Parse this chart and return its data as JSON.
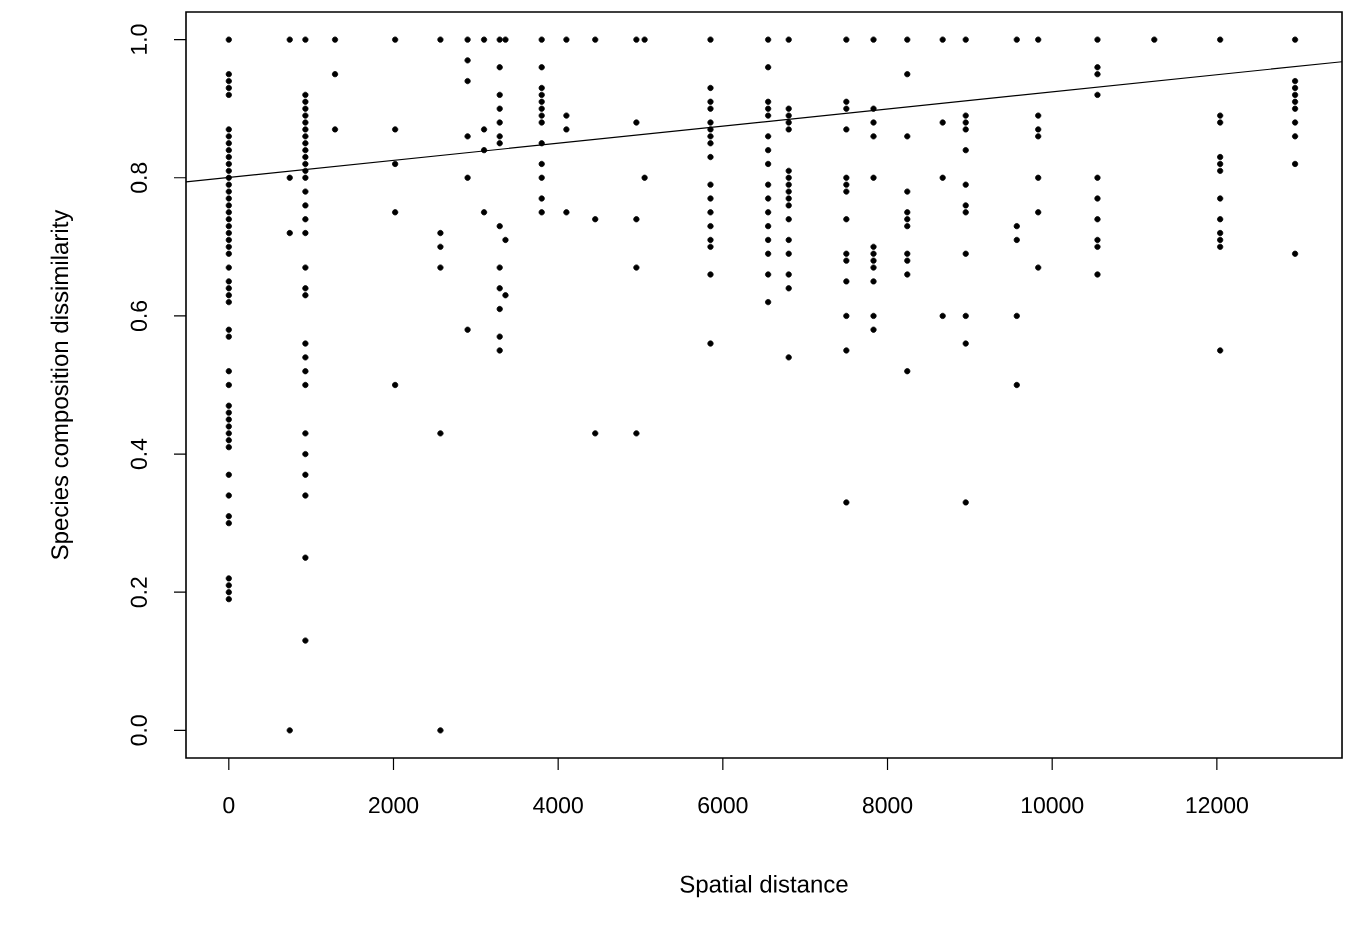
{
  "chart_data": {
    "type": "scatter",
    "xlabel": "Spatial distance",
    "ylabel": "Species composition dissimilarity",
    "xlim": [
      -520,
      13520
    ],
    "ylim": [
      -0.04,
      1.04
    ],
    "xticks": [
      0,
      2000,
      4000,
      6000,
      8000,
      10000,
      12000
    ],
    "yticks": [
      {
        "value": 0,
        "label": "0.0"
      },
      {
        "value": 0.2,
        "label": "0.2"
      },
      {
        "value": 0.4,
        "label": "0.4"
      },
      {
        "value": 0.6,
        "label": "0.6"
      },
      {
        "value": 0.8,
        "label": "0.8"
      },
      {
        "value": 1,
        "label": "1.0"
      }
    ],
    "marker": "circle",
    "grid": false,
    "series": [
      {
        "color": "#000000",
        "x": [
          0,
          0,
          0,
          0,
          0,
          0,
          0,
          0,
          0,
          0,
          0,
          0,
          0,
          0,
          0,
          0,
          0,
          0,
          0,
          0,
          0,
          0,
          0,
          0
        ],
        "values": [
          1.0,
          0.95,
          0.94,
          0.93,
          0.92,
          0.87,
          0.86,
          0.85,
          0.84,
          0.83,
          0.82,
          0.81,
          0.8,
          0.79,
          0.78,
          0.77,
          0.76,
          0.75,
          0.74,
          0.73,
          0.72,
          0.71,
          0.7,
          0.69
        ]
      },
      {
        "color": "#000000",
        "x": [
          0,
          0,
          0,
          0,
          0,
          0,
          0,
          0,
          0,
          0,
          0,
          0,
          0,
          0,
          0,
          0,
          0,
          0,
          0,
          0,
          0,
          0,
          0,
          0
        ],
        "values": [
          0.67,
          0.65,
          0.64,
          0.63,
          0.62,
          0.58,
          0.57,
          0.52,
          0.5,
          0.47,
          0.46,
          0.45,
          0.44,
          0.43,
          0.42,
          0.41,
          0.37,
          0.34,
          0.31,
          0.3,
          0.22,
          0.21,
          0.2,
          0.19
        ]
      },
      {
        "color": "#000000",
        "x": [
          740,
          740,
          740,
          740
        ],
        "values": [
          1.0,
          0.8,
          0.72,
          0.0
        ]
      },
      {
        "color": "#000000",
        "x": [
          930,
          930,
          930,
          930,
          930,
          930,
          930,
          930,
          930,
          930,
          930,
          930,
          930,
          930,
          930,
          930
        ],
        "values": [
          1.0,
          0.92,
          0.91,
          0.9,
          0.89,
          0.88,
          0.87,
          0.86,
          0.85,
          0.84,
          0.83,
          0.82,
          0.81,
          0.8,
          0.78,
          0.76
        ]
      },
      {
        "color": "#000000",
        "x": [
          930,
          930,
          930,
          930,
          930,
          930,
          930,
          930,
          930,
          930,
          930,
          930,
          930,
          930,
          930
        ],
        "values": [
          0.74,
          0.72,
          0.67,
          0.64,
          0.63,
          0.56,
          0.54,
          0.52,
          0.5,
          0.43,
          0.4,
          0.37,
          0.34,
          0.25,
          0.13
        ]
      },
      {
        "color": "#000000",
        "x": [
          1290,
          1290,
          1290
        ],
        "values": [
          1.0,
          0.95,
          0.87
        ]
      },
      {
        "color": "#000000",
        "x": [
          2020,
          2020,
          2020,
          2020,
          2020
        ],
        "values": [
          1.0,
          0.87,
          0.82,
          0.75,
          0.5
        ]
      },
      {
        "color": "#000000",
        "x": [
          2570,
          2570,
          2570,
          2570,
          2570,
          2570
        ],
        "values": [
          1.0,
          0.72,
          0.7,
          0.67,
          0.43,
          0.0
        ]
      },
      {
        "color": "#000000",
        "x": [
          2900,
          2900,
          2900,
          2900,
          2900,
          2900
        ],
        "values": [
          1.0,
          0.97,
          0.94,
          0.86,
          0.8,
          0.58
        ]
      },
      {
        "color": "#000000",
        "x": [
          3100,
          3100,
          3100,
          3100
        ],
        "values": [
          1.0,
          0.87,
          0.84,
          0.75
        ]
      },
      {
        "color": "#000000",
        "x": [
          3290,
          3290,
          3290,
          3290,
          3290,
          3290,
          3290,
          3290,
          3290,
          3290,
          3290,
          3290,
          3290
        ],
        "values": [
          1.0,
          0.96,
          0.92,
          0.9,
          0.88,
          0.86,
          0.85,
          0.73,
          0.67,
          0.64,
          0.61,
          0.57,
          0.55
        ]
      },
      {
        "color": "#000000",
        "x": [
          3360,
          3360,
          3360
        ],
        "values": [
          1.0,
          0.71,
          0.63
        ]
      },
      {
        "color": "#000000",
        "x": [
          3800,
          3800,
          3800,
          3800,
          3800,
          3800,
          3800,
          3800,
          3800,
          3800,
          3800,
          3800,
          3800
        ],
        "values": [
          1.0,
          0.96,
          0.93,
          0.92,
          0.91,
          0.9,
          0.89,
          0.88,
          0.85,
          0.82,
          0.8,
          0.77,
          0.75
        ]
      },
      {
        "color": "#000000",
        "x": [
          4100,
          4100,
          4100,
          4100
        ],
        "values": [
          1.0,
          0.89,
          0.87,
          0.75
        ]
      },
      {
        "color": "#000000",
        "x": [
          4450,
          4450,
          4450
        ],
        "values": [
          1.0,
          0.74,
          0.43
        ]
      },
      {
        "color": "#000000",
        "x": [
          4950,
          4950,
          4950,
          4950,
          4950
        ],
        "values": [
          1.0,
          0.88,
          0.74,
          0.67,
          0.43
        ]
      },
      {
        "color": "#000000",
        "x": [
          5050,
          5050
        ],
        "values": [
          1.0,
          0.8
        ]
      },
      {
        "color": "#000000",
        "x": [
          5850,
          5850,
          5850,
          5850,
          5850,
          5850,
          5850,
          5850,
          5850,
          5850,
          5850,
          5850,
          5850,
          5850,
          5850,
          5850,
          5850
        ],
        "values": [
          1.0,
          0.93,
          0.91,
          0.9,
          0.88,
          0.87,
          0.86,
          0.85,
          0.83,
          0.79,
          0.77,
          0.75,
          0.73,
          0.71,
          0.7,
          0.66,
          0.56
        ]
      },
      {
        "color": "#000000",
        "x": [
          6550,
          6550,
          6550,
          6550,
          6550,
          6550,
          6550,
          6550,
          6550,
          6550,
          6550,
          6550,
          6550,
          6550,
          6550,
          6550
        ],
        "values": [
          1.0,
          0.96,
          0.91,
          0.9,
          0.89,
          0.86,
          0.84,
          0.82,
          0.79,
          0.77,
          0.75,
          0.73,
          0.71,
          0.69,
          0.66,
          0.62
        ]
      },
      {
        "color": "#000000",
        "x": [
          6800,
          6800,
          6800,
          6800,
          6800,
          6800,
          6800,
          6800,
          6800,
          6800,
          6800,
          6800,
          6800,
          6800,
          6800,
          6800,
          6800
        ],
        "values": [
          1.0,
          0.9,
          0.89,
          0.88,
          0.87,
          0.81,
          0.8,
          0.79,
          0.78,
          0.77,
          0.76,
          0.74,
          0.71,
          0.69,
          0.66,
          0.64,
          0.54
        ]
      },
      {
        "color": "#000000",
        "x": [
          7500,
          7500,
          7500,
          7500,
          7500,
          7500,
          7500,
          7500,
          7500,
          7500,
          7500,
          7500,
          7500,
          7500
        ],
        "values": [
          1.0,
          0.91,
          0.9,
          0.87,
          0.8,
          0.79,
          0.78,
          0.74,
          0.69,
          0.68,
          0.65,
          0.6,
          0.55,
          0.33
        ]
      },
      {
        "color": "#000000",
        "x": [
          7830,
          7830,
          7830,
          7830,
          7830,
          7830,
          7830,
          7830,
          7830,
          7830,
          7830,
          7830
        ],
        "values": [
          1.0,
          0.9,
          0.88,
          0.86,
          0.8,
          0.7,
          0.69,
          0.68,
          0.67,
          0.65,
          0.6,
          0.58
        ]
      },
      {
        "color": "#000000",
        "x": [
          8240,
          8240,
          8240,
          8240,
          8240,
          8240,
          8240,
          8240,
          8240,
          8240,
          8240
        ],
        "values": [
          1.0,
          0.95,
          0.86,
          0.78,
          0.75,
          0.74,
          0.73,
          0.69,
          0.68,
          0.66,
          0.52
        ]
      },
      {
        "color": "#000000",
        "x": [
          8670,
          8670,
          8670,
          8670
        ],
        "values": [
          1.0,
          0.88,
          0.8,
          0.6
        ]
      },
      {
        "color": "#000000",
        "x": [
          8950,
          8950,
          8950,
          8950,
          8950,
          8950,
          8950,
          8950,
          8950,
          8950,
          8950,
          8950
        ],
        "values": [
          1.0,
          0.89,
          0.88,
          0.87,
          0.84,
          0.79,
          0.76,
          0.75,
          0.69,
          0.6,
          0.56,
          0.33
        ]
      },
      {
        "color": "#000000",
        "x": [
          9570,
          9570,
          9570,
          9570,
          9570
        ],
        "values": [
          1.0,
          0.73,
          0.71,
          0.6,
          0.5
        ]
      },
      {
        "color": "#000000",
        "x": [
          9830,
          9830,
          9830,
          9830,
          9830,
          9830,
          9830
        ],
        "values": [
          1.0,
          0.89,
          0.87,
          0.86,
          0.8,
          0.75,
          0.67
        ]
      },
      {
        "color": "#000000",
        "x": [
          10550,
          10550,
          10550,
          10550,
          10550,
          10550,
          10550,
          10550,
          10550,
          10550
        ],
        "values": [
          1.0,
          0.96,
          0.95,
          0.92,
          0.8,
          0.77,
          0.74,
          0.71,
          0.7,
          0.66
        ]
      },
      {
        "color": "#000000",
        "x": [
          11240
        ],
        "values": [
          1.0
        ]
      },
      {
        "color": "#000000",
        "x": [
          12040,
          12040,
          12040,
          12040,
          12040,
          12040,
          12040,
          12040,
          12040,
          12040,
          12040,
          12040
        ],
        "values": [
          1.0,
          0.89,
          0.88,
          0.83,
          0.82,
          0.81,
          0.77,
          0.74,
          0.72,
          0.71,
          0.7,
          0.55
        ]
      },
      {
        "color": "#000000",
        "x": [
          12950,
          12950,
          12950,
          12950,
          12950,
          12950,
          12950,
          12950,
          12950,
          12950
        ],
        "values": [
          1.0,
          0.94,
          0.93,
          0.92,
          0.91,
          0.9,
          0.88,
          0.86,
          0.82,
          0.69
        ]
      },
      {
        "type": "line",
        "marker": "none",
        "color": "#000000",
        "x": [
          -520,
          13520
        ],
        "values": [
          0.794,
          0.968
        ]
      }
    ]
  }
}
